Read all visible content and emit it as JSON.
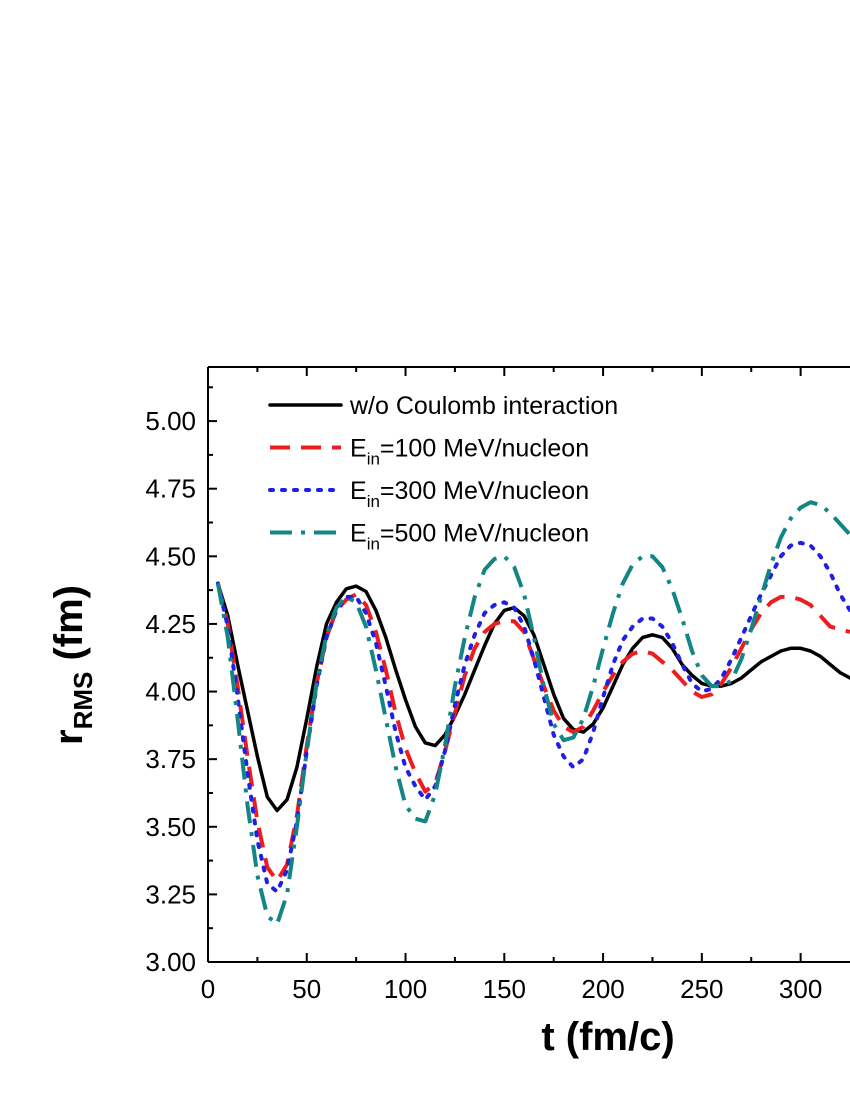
{
  "chart_data": {
    "type": "line",
    "title": "",
    "xlabel": "t (fm/c)",
    "ylabel": {
      "main": "r",
      "sub": "RMS",
      "unit": " (fm)"
    },
    "xlim": [
      0,
      325
    ],
    "ylim": [
      3.0,
      5.2
    ],
    "x_ticks": [
      0,
      50,
      100,
      150,
      200,
      250,
      300
    ],
    "x_tick_labels": [
      "0",
      "50",
      "100",
      "150",
      "200",
      "250",
      "300"
    ],
    "y_ticks": [
      3.0,
      3.25,
      3.5,
      3.75,
      4.0,
      4.25,
      4.5,
      4.75,
      5.0
    ],
    "y_tick_labels": [
      "3.00",
      "3.25",
      "3.50",
      "3.75",
      "4.00",
      "4.25",
      "4.50",
      "4.75",
      "5.00"
    ],
    "grid": false,
    "legend_position": "top-left",
    "series": [
      {
        "name": "w/o Coulomb interaction",
        "legend": {
          "prefix": "w/o Coulomb interaction",
          "sub": "",
          "suffix": ""
        },
        "color": "#000000",
        "style": "solid",
        "x": [
          5,
          10,
          15,
          20,
          25,
          30,
          35,
          40,
          45,
          50,
          55,
          60,
          65,
          70,
          75,
          80,
          85,
          90,
          95,
          100,
          105,
          110,
          115,
          120,
          125,
          130,
          135,
          140,
          145,
          150,
          155,
          160,
          165,
          170,
          175,
          180,
          185,
          190,
          195,
          200,
          205,
          210,
          215,
          220,
          225,
          230,
          235,
          240,
          245,
          250,
          255,
          260,
          265,
          270,
          275,
          280,
          285,
          290,
          295,
          300,
          305,
          310,
          315,
          320,
          325
        ],
        "y": [
          4.4,
          4.28,
          4.1,
          3.93,
          3.76,
          3.61,
          3.56,
          3.6,
          3.72,
          3.9,
          4.09,
          4.25,
          4.33,
          4.38,
          4.39,
          4.37,
          4.3,
          4.2,
          4.08,
          3.97,
          3.87,
          3.81,
          3.8,
          3.84,
          3.91,
          3.99,
          4.08,
          4.17,
          4.25,
          4.3,
          4.31,
          4.28,
          4.21,
          4.1,
          3.99,
          3.9,
          3.86,
          3.85,
          3.88,
          3.94,
          4.02,
          4.1,
          4.16,
          4.2,
          4.21,
          4.2,
          4.16,
          4.1,
          4.06,
          4.03,
          4.02,
          4.02,
          4.03,
          4.05,
          4.08,
          4.11,
          4.13,
          4.15,
          4.16,
          4.16,
          4.15,
          4.13,
          4.1,
          4.07,
          4.05
        ]
      },
      {
        "name": "Ein=100 MeV/nucleon",
        "legend": {
          "prefix": "E",
          "sub": "in",
          "suffix": "=100 MeV/nucleon"
        },
        "color": "#ee1c1c",
        "style": "dash",
        "x": [
          5,
          10,
          15,
          20,
          25,
          30,
          35,
          40,
          45,
          50,
          55,
          60,
          65,
          70,
          75,
          80,
          85,
          90,
          95,
          100,
          105,
          110,
          115,
          120,
          125,
          130,
          135,
          140,
          145,
          150,
          155,
          160,
          165,
          170,
          175,
          180,
          185,
          190,
          195,
          200,
          205,
          210,
          215,
          220,
          225,
          230,
          235,
          240,
          245,
          250,
          255,
          260,
          265,
          270,
          275,
          280,
          285,
          290,
          295,
          300,
          305,
          310,
          315,
          320,
          325
        ],
        "y": [
          4.4,
          4.25,
          4.02,
          3.76,
          3.52,
          3.35,
          3.3,
          3.36,
          3.54,
          3.8,
          4.03,
          4.2,
          4.3,
          4.34,
          4.36,
          4.32,
          4.22,
          4.08,
          3.92,
          3.79,
          3.7,
          3.63,
          3.66,
          3.78,
          3.92,
          4.06,
          4.16,
          4.22,
          4.25,
          4.26,
          4.26,
          4.22,
          4.12,
          4.02,
          3.93,
          3.87,
          3.85,
          3.87,
          3.93,
          4.0,
          4.06,
          4.11,
          4.14,
          4.15,
          4.14,
          4.11,
          4.08,
          4.04,
          4.0,
          3.98,
          3.99,
          4.03,
          4.09,
          4.16,
          4.23,
          4.29,
          4.33,
          4.35,
          4.35,
          4.34,
          4.32,
          4.28,
          4.24,
          4.23,
          4.22
        ]
      },
      {
        "name": "Ein=300 MeV/nucleon",
        "legend": {
          "prefix": "E",
          "sub": "in",
          "suffix": "=300 MeV/nucleon"
        },
        "color": "#1f1fe6",
        "style": "dot",
        "x": [
          5,
          10,
          15,
          20,
          25,
          30,
          35,
          40,
          45,
          50,
          55,
          60,
          65,
          70,
          75,
          80,
          85,
          90,
          95,
          100,
          105,
          110,
          115,
          120,
          125,
          130,
          135,
          140,
          145,
          150,
          155,
          160,
          165,
          170,
          175,
          180,
          185,
          190,
          195,
          200,
          205,
          210,
          215,
          220,
          225,
          230,
          235,
          240,
          245,
          250,
          255,
          260,
          265,
          270,
          275,
          280,
          285,
          290,
          295,
          300,
          305,
          310,
          315,
          320,
          325
        ],
        "y": [
          4.4,
          4.24,
          3.98,
          3.7,
          3.45,
          3.29,
          3.26,
          3.34,
          3.52,
          3.78,
          4.02,
          4.2,
          4.3,
          4.35,
          4.35,
          4.29,
          4.18,
          4.02,
          3.85,
          3.72,
          3.65,
          3.6,
          3.65,
          3.78,
          3.95,
          4.1,
          4.21,
          4.29,
          4.32,
          4.33,
          4.31,
          4.24,
          4.12,
          3.98,
          3.84,
          3.76,
          3.72,
          3.75,
          3.85,
          3.98,
          4.1,
          4.19,
          4.24,
          4.27,
          4.27,
          4.24,
          4.18,
          4.1,
          4.03,
          4.0,
          4.01,
          4.05,
          4.12,
          4.2,
          4.28,
          4.36,
          4.43,
          4.5,
          4.54,
          4.55,
          4.54,
          4.5,
          4.44,
          4.36,
          4.3
        ]
      },
      {
        "name": "Ein=500 MeV/nucleon",
        "legend": {
          "prefix": "E",
          "sub": "in",
          "suffix": "=500 MeV/nucleon"
        },
        "color": "#138585",
        "style": "dashdot",
        "x": [
          5,
          10,
          15,
          20,
          25,
          30,
          35,
          40,
          45,
          50,
          55,
          60,
          65,
          70,
          75,
          80,
          85,
          90,
          95,
          100,
          105,
          110,
          115,
          120,
          125,
          130,
          135,
          140,
          145,
          150,
          155,
          160,
          165,
          170,
          175,
          180,
          185,
          190,
          195,
          200,
          205,
          210,
          215,
          220,
          225,
          230,
          235,
          240,
          245,
          250,
          255,
          260,
          265,
          270,
          275,
          280,
          285,
          290,
          295,
          300,
          305,
          310,
          315,
          320,
          325
        ],
        "y": [
          4.4,
          4.2,
          3.9,
          3.58,
          3.32,
          3.17,
          3.14,
          3.25,
          3.5,
          3.78,
          4.03,
          4.21,
          4.31,
          4.35,
          4.33,
          4.24,
          4.08,
          3.9,
          3.72,
          3.58,
          3.53,
          3.52,
          3.62,
          3.8,
          4.02,
          4.2,
          4.35,
          4.45,
          4.49,
          4.5,
          4.46,
          4.36,
          4.2,
          4.02,
          3.88,
          3.82,
          3.83,
          3.9,
          4.02,
          4.16,
          4.29,
          4.4,
          4.47,
          4.5,
          4.5,
          4.46,
          4.38,
          4.27,
          4.15,
          4.06,
          4.02,
          4.02,
          4.04,
          4.12,
          4.23,
          4.35,
          4.47,
          4.57,
          4.64,
          4.68,
          4.7,
          4.69,
          4.66,
          4.62,
          4.58
        ]
      }
    ]
  }
}
